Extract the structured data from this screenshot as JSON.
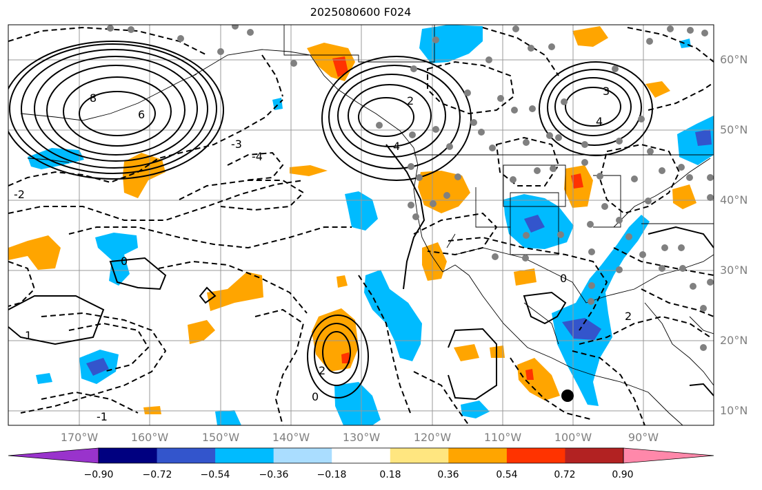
{
  "title": "2025080600 F024",
  "lon_labels": [
    "170°W",
    "160°W",
    "150°W",
    "140°W",
    "130°W",
    "120°W",
    "110°W",
    "100°W",
    "90°W"
  ],
  "lat_labels": [
    "60°N",
    "50°N",
    "40°N",
    "30°N",
    "20°N",
    "10°N"
  ],
  "colorbar": {
    "ticks": [
      "−0.90",
      "−0.72",
      "−0.54",
      "−0.36",
      "−0.18",
      "0.18",
      "0.36",
      "0.54",
      "0.72",
      "0.90"
    ],
    "colors": [
      "#9933cc",
      "#000080",
      "#3355cc",
      "#00bbff",
      "#aaddff",
      "#ffffff",
      "#ffe680",
      "#ffa500",
      "#ff3300",
      "#b22222",
      "#ff88aa"
    ]
  },
  "contour_labels": {
    "high_west": "8",
    "high_west_inner": "6",
    "high_coast": "4",
    "high_coast_2": "2",
    "high_east": "3",
    "high_east_2": "4",
    "low_mid": "-3",
    "low_mid_2": "-4",
    "tc_center": "2",
    "zero_a": "0",
    "zero_b": "0",
    "zero_c": "0",
    "neg_one": "-1",
    "one": "1",
    "two": "2",
    "neg_two": "-2"
  },
  "colors": {
    "grid": "#999999",
    "contour": "#000000",
    "dots": "#808080",
    "tick_label": "#7f7f7f"
  }
}
